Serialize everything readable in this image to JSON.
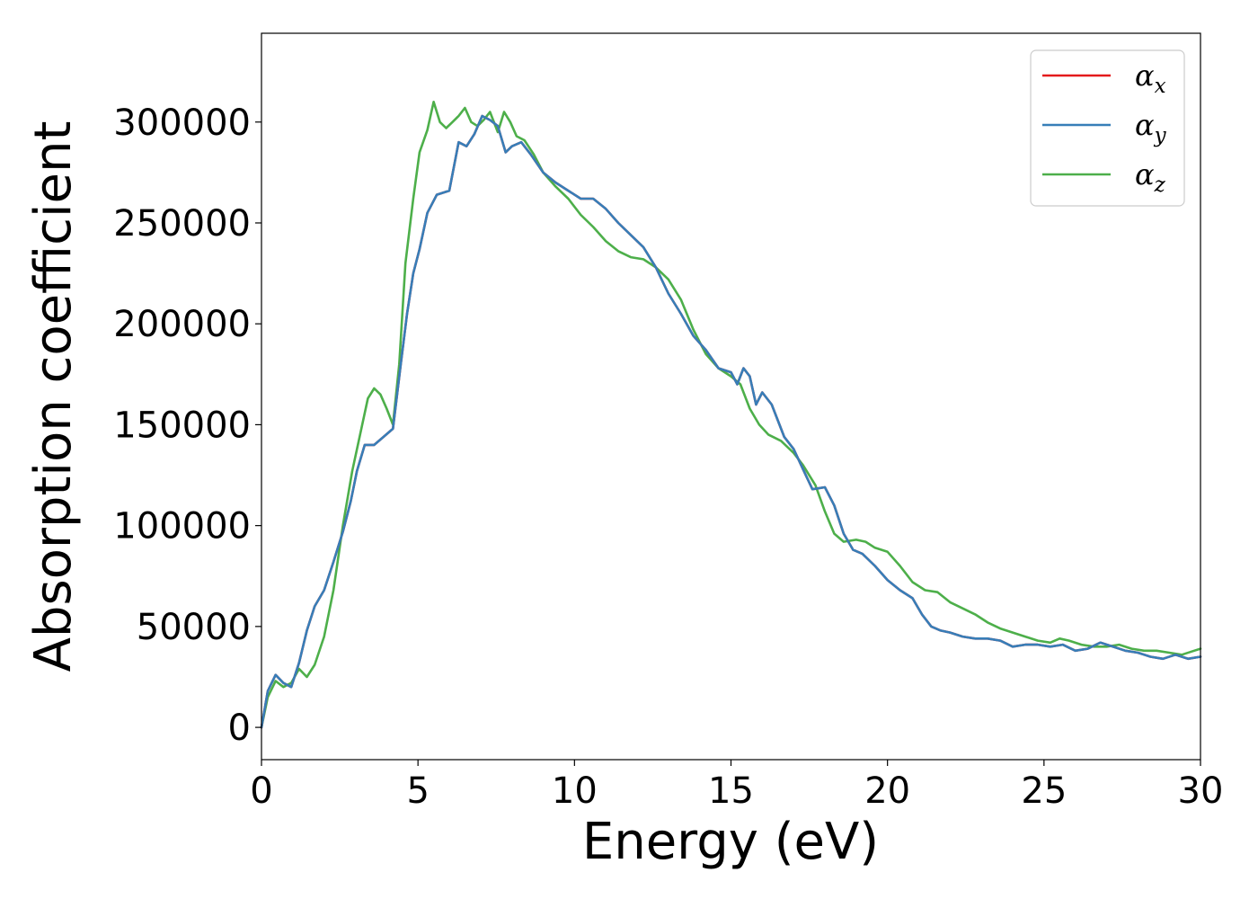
{
  "chart_data": {
    "type": "line",
    "xlabel": "Energy (eV)",
    "ylabel": "Absorption coefficient",
    "xlim": [
      0,
      30
    ],
    "ylim": [
      -16000,
      344000
    ],
    "x_ticks": [
      "0",
      "5",
      "10",
      "15",
      "20",
      "25",
      "30"
    ],
    "y_ticks": [
      "0",
      "50000",
      "100000",
      "150000",
      "200000",
      "250000",
      "300000"
    ],
    "grid": false,
    "legend_position": "top-right",
    "series": [
      {
        "name": "α",
        "sub": "x",
        "color": "#e41a1c",
        "x": [
          0,
          0.2,
          0.45,
          0.7,
          0.95,
          1.2,
          1.45,
          1.7,
          2.0,
          2.3,
          2.6,
          2.85,
          3.05,
          3.3,
          3.6,
          3.9,
          4.2,
          4.45,
          4.65,
          4.85,
          5.05,
          5.3,
          5.6,
          6.0,
          6.3,
          6.55,
          6.8,
          7.05,
          7.3,
          7.55,
          7.8,
          8.0,
          8.3,
          8.6,
          9.0,
          9.4,
          9.8,
          10.2,
          10.6,
          11.0,
          11.4,
          11.8,
          12.2,
          12.6,
          13.0,
          13.4,
          13.8,
          14.2,
          14.6,
          15.0,
          15.2,
          15.4,
          15.6,
          15.8,
          16.0,
          16.3,
          16.7,
          17.0,
          17.3,
          17.6,
          18.0,
          18.3,
          18.6,
          18.9,
          19.2,
          19.6,
          20.0,
          20.4,
          20.8,
          21.1,
          21.4,
          21.7,
          22.0,
          22.4,
          22.8,
          23.2,
          23.6,
          24.0,
          24.4,
          24.8,
          25.2,
          25.6,
          26.0,
          26.4,
          26.8,
          27.2,
          27.6,
          28.0,
          28.4,
          28.8,
          29.2,
          29.6,
          30.0
        ],
        "y": [
          0,
          18000,
          26000,
          22000,
          20000,
          32000,
          48000,
          60000,
          68000,
          82000,
          97000,
          112000,
          127000,
          140000,
          140000,
          144000,
          148000,
          180000,
          205000,
          225000,
          237000,
          255000,
          264000,
          266000,
          290000,
          288000,
          294000,
          303000,
          301000,
          298000,
          285000,
          288000,
          290000,
          284000,
          275000,
          270000,
          266000,
          262000,
          262000,
          257000,
          250000,
          244000,
          238000,
          228000,
          215000,
          205000,
          194000,
          187000,
          178000,
          176000,
          170000,
          178000,
          174000,
          160000,
          166000,
          160000,
          144000,
          138000,
          128000,
          118000,
          119000,
          110000,
          96000,
          88000,
          86000,
          80000,
          73000,
          68000,
          64000,
          56000,
          50000,
          48000,
          47000,
          45000,
          44000,
          44000,
          43000,
          40000,
          41000,
          41000,
          40000,
          41000,
          38000,
          39000,
          42000,
          40000,
          38000,
          37000,
          35000,
          34000,
          36000,
          34000,
          35000
        ]
      },
      {
        "name": "α",
        "sub": "y",
        "color": "#377eb8",
        "x": [
          0,
          0.2,
          0.45,
          0.7,
          0.95,
          1.2,
          1.45,
          1.7,
          2.0,
          2.3,
          2.6,
          2.85,
          3.05,
          3.3,
          3.6,
          3.9,
          4.2,
          4.45,
          4.65,
          4.85,
          5.05,
          5.3,
          5.6,
          6.0,
          6.3,
          6.55,
          6.8,
          7.05,
          7.3,
          7.55,
          7.8,
          8.0,
          8.3,
          8.6,
          9.0,
          9.4,
          9.8,
          10.2,
          10.6,
          11.0,
          11.4,
          11.8,
          12.2,
          12.6,
          13.0,
          13.4,
          13.8,
          14.2,
          14.6,
          15.0,
          15.2,
          15.4,
          15.6,
          15.8,
          16.0,
          16.3,
          16.7,
          17.0,
          17.3,
          17.6,
          18.0,
          18.3,
          18.6,
          18.9,
          19.2,
          19.6,
          20.0,
          20.4,
          20.8,
          21.1,
          21.4,
          21.7,
          22.0,
          22.4,
          22.8,
          23.2,
          23.6,
          24.0,
          24.4,
          24.8,
          25.2,
          25.6,
          26.0,
          26.4,
          26.8,
          27.2,
          27.6,
          28.0,
          28.4,
          28.8,
          29.2,
          29.6,
          30.0
        ],
        "y": [
          0,
          18000,
          26000,
          22000,
          20000,
          32000,
          48000,
          60000,
          68000,
          82000,
          97000,
          112000,
          127000,
          140000,
          140000,
          144000,
          148000,
          180000,
          205000,
          225000,
          237000,
          255000,
          264000,
          266000,
          290000,
          288000,
          294000,
          303000,
          301000,
          298000,
          285000,
          288000,
          290000,
          284000,
          275000,
          270000,
          266000,
          262000,
          262000,
          257000,
          250000,
          244000,
          238000,
          228000,
          215000,
          205000,
          194000,
          187000,
          178000,
          176000,
          170000,
          178000,
          174000,
          160000,
          166000,
          160000,
          144000,
          138000,
          128000,
          118000,
          119000,
          110000,
          96000,
          88000,
          86000,
          80000,
          73000,
          68000,
          64000,
          56000,
          50000,
          48000,
          47000,
          45000,
          44000,
          44000,
          43000,
          40000,
          41000,
          41000,
          40000,
          41000,
          38000,
          39000,
          42000,
          40000,
          38000,
          37000,
          35000,
          34000,
          36000,
          34000,
          35000
        ]
      },
      {
        "name": "α",
        "sub": "z",
        "color": "#4daf4a",
        "x": [
          0,
          0.2,
          0.45,
          0.7,
          0.95,
          1.2,
          1.45,
          1.7,
          2.0,
          2.3,
          2.6,
          2.9,
          3.15,
          3.4,
          3.6,
          3.8,
          4.0,
          4.2,
          4.4,
          4.6,
          4.85,
          5.05,
          5.3,
          5.5,
          5.7,
          5.9,
          6.1,
          6.3,
          6.5,
          6.7,
          6.9,
          7.1,
          7.3,
          7.55,
          7.75,
          7.95,
          8.15,
          8.4,
          8.7,
          9.0,
          9.4,
          9.8,
          10.2,
          10.6,
          11.0,
          11.4,
          11.8,
          12.2,
          12.6,
          13.0,
          13.4,
          13.8,
          14.2,
          14.6,
          15.0,
          15.3,
          15.6,
          15.9,
          16.2,
          16.6,
          17.0,
          17.3,
          17.7,
          18.0,
          18.3,
          18.6,
          19.0,
          19.3,
          19.6,
          20.0,
          20.4,
          20.8,
          21.2,
          21.6,
          22.0,
          22.4,
          22.8,
          23.2,
          23.6,
          24.0,
          24.4,
          24.8,
          25.2,
          25.5,
          25.8,
          26.2,
          26.6,
          27.0,
          27.4,
          27.8,
          28.2,
          28.6,
          29.0,
          29.4,
          29.8,
          30.0
        ],
        "y": [
          0,
          15000,
          23000,
          20000,
          22000,
          29000,
          25000,
          31000,
          45000,
          68000,
          100000,
          127000,
          145000,
          163000,
          168000,
          165000,
          158000,
          150000,
          180000,
          230000,
          262000,
          285000,
          296000,
          310000,
          300000,
          297000,
          300000,
          303000,
          307000,
          300000,
          298000,
          301000,
          305000,
          295000,
          305000,
          300000,
          293000,
          291000,
          284000,
          275000,
          268000,
          262000,
          254000,
          248000,
          241000,
          236000,
          233000,
          232000,
          228000,
          222000,
          212000,
          197000,
          185000,
          178000,
          174000,
          170000,
          158000,
          150000,
          145000,
          142000,
          136000,
          130000,
          120000,
          107000,
          96000,
          92000,
          93000,
          92000,
          89000,
          87000,
          80000,
          72000,
          68000,
          67000,
          62000,
          59000,
          56000,
          52000,
          49000,
          47000,
          45000,
          43000,
          42000,
          44000,
          43000,
          41000,
          40000,
          40000,
          41000,
          39000,
          38000,
          38000,
          37000,
          36000,
          38000,
          39000
        ]
      }
    ]
  }
}
